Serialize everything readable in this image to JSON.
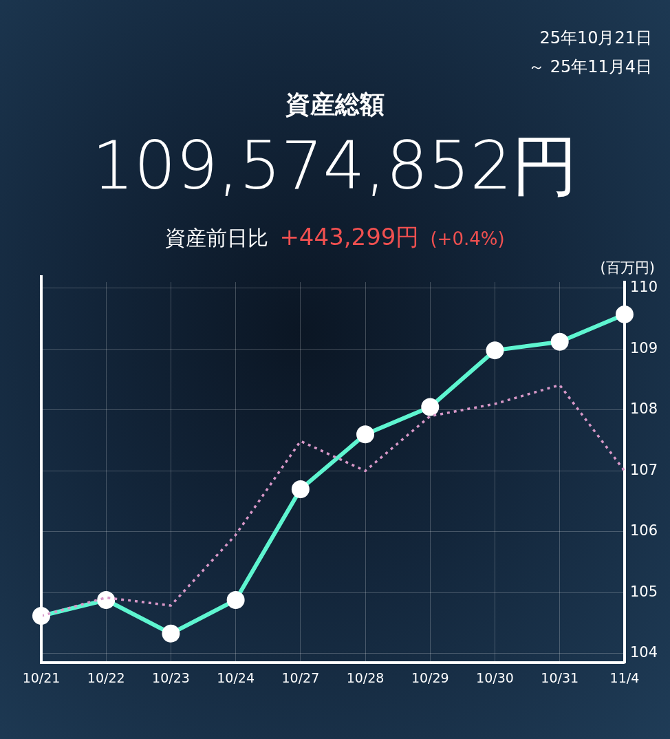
{
  "chart_data": {
    "type": "line",
    "title": "資産総額",
    "subtitle": "109,574,852円",
    "ylabel": "(百万円)",
    "annotations": [
      "25年10月21日",
      "～ 25年11月4日",
      "資産前日比",
      "+443,299円",
      "(+0.4%)"
    ],
    "categories": [
      "10/21",
      "10/22",
      "10/23",
      "10/24",
      "10/27",
      "10/28",
      "10/29",
      "10/30",
      "10/31",
      "11/4"
    ],
    "series": [
      {
        "color": "#5ef5d0",
        "marker": "circle",
        "line_style": "solid",
        "values": [
          104.62,
          104.88,
          104.33,
          104.88,
          106.7,
          107.6,
          108.05,
          108.98,
          109.12,
          109.57
        ]
      },
      {
        "color": "#d898c8",
        "marker": "none",
        "line_style": "dotted",
        "values": [
          104.62,
          104.92,
          104.79,
          105.95,
          107.49,
          107.0,
          107.9,
          108.1,
          108.41,
          107.0
        ]
      }
    ],
    "ylim": [
      103.85,
      110.1
    ],
    "yticks": [
      104,
      105,
      106,
      107,
      108,
      109,
      110
    ],
    "grid": true,
    "legend": false
  }
}
